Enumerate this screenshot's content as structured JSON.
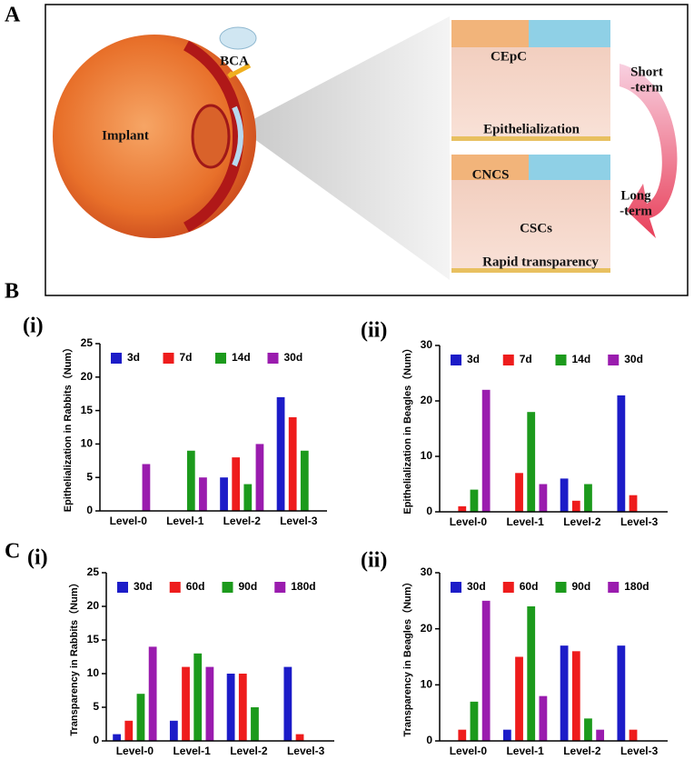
{
  "diagram": {
    "panel_label": "A",
    "labels": {
      "bca": "BCA",
      "implant": "Implant",
      "cepc": "CEpC",
      "epithelialization": "Epithelialization",
      "cncs": "CNCS",
      "cscs": "CSCs",
      "rapid": "Rapid transparency",
      "short": [
        "Short",
        "-term"
      ],
      "long": [
        "Long",
        "-term"
      ]
    }
  },
  "panel_labels": [
    "B",
    "C"
  ],
  "chart_data": [
    {
      "type": "bar",
      "panel": "(i)",
      "y_label": "Epithelialization in Rabbits（Num）",
      "categories": [
        "Level-0",
        "Level-1",
        "Level-2",
        "Level-3"
      ],
      "series": [
        {
          "name": "3d",
          "color": "#1c1cc8",
          "values": [
            0,
            0,
            5,
            17
          ]
        },
        {
          "name": "7d",
          "color": "#ee1c1c",
          "values": [
            0,
            0,
            8,
            14
          ]
        },
        {
          "name": "14d",
          "color": "#1c9a1c",
          "values": [
            0,
            9,
            4,
            9
          ]
        },
        {
          "name": "30d",
          "color": "#9a1cae",
          "values": [
            7,
            5,
            10,
            0
          ]
        }
      ],
      "ylim": [
        0,
        25
      ],
      "yticks": [
        0,
        5,
        10,
        15,
        20,
        25
      ]
    },
    {
      "type": "bar",
      "panel": "(ii)",
      "y_label": "Epithelialization in Beagles（Num）",
      "categories": [
        "Level-0",
        "Level-1",
        "Level-2",
        "Level-3"
      ],
      "series": [
        {
          "name": "3d",
          "color": "#1c1cc8",
          "values": [
            0,
            0,
            6,
            21
          ]
        },
        {
          "name": "7d",
          "color": "#ee1c1c",
          "values": [
            1,
            7,
            2,
            3
          ]
        },
        {
          "name": "14d",
          "color": "#1c9a1c",
          "values": [
            4,
            18,
            5,
            0
          ]
        },
        {
          "name": "30d",
          "color": "#9a1cae",
          "values": [
            22,
            5,
            0,
            0
          ]
        }
      ],
      "ylim": [
        0,
        30
      ],
      "yticks": [
        0,
        10,
        20,
        30
      ]
    },
    {
      "type": "bar",
      "panel": "(i)",
      "y_label": "Transparency in Rabbits（Num）",
      "categories": [
        "Level-0",
        "Level-1",
        "Level-2",
        "Level-3"
      ],
      "series": [
        {
          "name": "30d",
          "color": "#1c1cc8",
          "values": [
            1,
            3,
            10,
            11
          ]
        },
        {
          "name": "60d",
          "color": "#ee1c1c",
          "values": [
            3,
            11,
            10,
            1
          ]
        },
        {
          "name": "90d",
          "color": "#1c9a1c",
          "values": [
            7,
            13,
            5,
            0
          ]
        },
        {
          "name": "180d",
          "color": "#9a1cae",
          "values": [
            14,
            11,
            0,
            0
          ]
        }
      ],
      "ylim": [
        0,
        25
      ],
      "yticks": [
        0,
        5,
        10,
        15,
        20,
        25
      ]
    },
    {
      "type": "bar",
      "panel": "(ii)",
      "y_label": "Transparency in Beagles（Num）",
      "categories": [
        "Level-0",
        "Level-1",
        "Level-2",
        "Level-3"
      ],
      "series": [
        {
          "name": "30d",
          "color": "#1c1cc8",
          "values": [
            0,
            2,
            17,
            17
          ]
        },
        {
          "name": "60d",
          "color": "#ee1c1c",
          "values": [
            2,
            15,
            16,
            2
          ]
        },
        {
          "name": "90d",
          "color": "#1c9a1c",
          "values": [
            7,
            24,
            4,
            0
          ]
        },
        {
          "name": "180d",
          "color": "#9a1cae",
          "values": [
            25,
            8,
            2,
            0
          ]
        }
      ],
      "ylim": [
        0,
        30
      ],
      "yticks": [
        0,
        10,
        20,
        30
      ]
    }
  ]
}
